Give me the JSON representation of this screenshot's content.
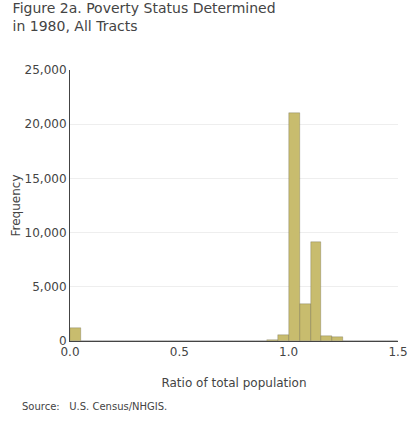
{
  "chart_data": {
    "type": "histogram",
    "title": "Figure 2a. Poverty Status Determined\nin 1980, All Tracts",
    "xlabel": "Ratio of total population",
    "ylabel": "Frequency",
    "annotations": [
      "Source:   U.S. Census/NHGIS."
    ],
    "bins": [
      0.0,
      0.05,
      0.1,
      0.15,
      0.2,
      0.25,
      0.3,
      0.35,
      0.4,
      0.45,
      0.5,
      0.55,
      0.6,
      0.65,
      0.7,
      0.75,
      0.8,
      0.85,
      0.9,
      0.95,
      1.0,
      1.05,
      1.1,
      1.15,
      1.2,
      1.25,
      1.3,
      1.35,
      1.4,
      1.45,
      1.5
    ],
    "values": [
      1200,
      0,
      0,
      0,
      0,
      0,
      0,
      0,
      0,
      0,
      0,
      0,
      0,
      0,
      0,
      0,
      0,
      0,
      100,
      600,
      21000,
      3400,
      9100,
      500,
      400,
      0,
      0,
      0,
      0,
      0
    ],
    "color": "#c8bc6e",
    "xlim": [
      0,
      1.5
    ],
    "xticks": [
      {
        "value": 0,
        "label": "0.0"
      },
      0.5,
      {
        "value": 1,
        "label": "1.0"
      },
      1.5
    ],
    "ylim": [
      0,
      25000
    ],
    "yticks": [
      0,
      {
        "value": 5000,
        "label": "5,000"
      },
      {
        "value": 10000,
        "label": "10,000"
      },
      {
        "value": 15000,
        "label": "15,000"
      },
      {
        "value": 20000,
        "label": "20,000"
      },
      {
        "value": 25000,
        "label": "25,000"
      }
    ],
    "grid": "y"
  }
}
